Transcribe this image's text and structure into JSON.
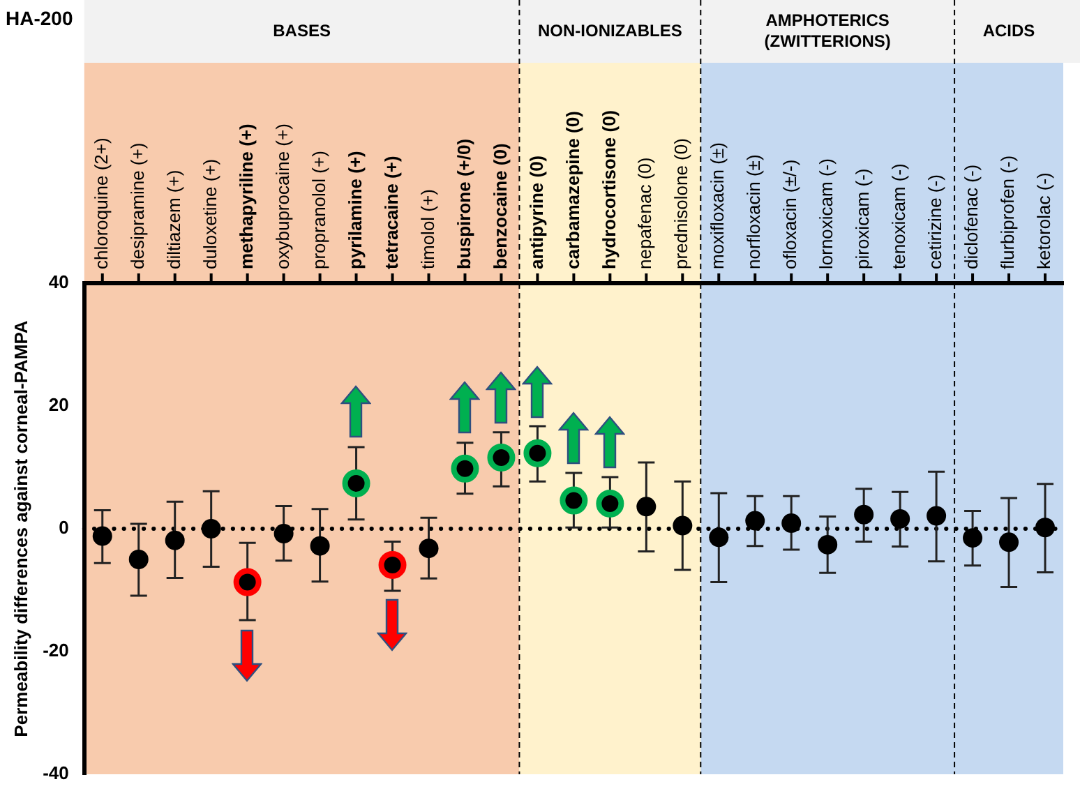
{
  "chart_data": {
    "type": "scatter",
    "title": "HA-200",
    "ylabel": "Permeability differences against corneal-PAMPA",
    "categories": [
      "chloroquine (2+)",
      "desipramine (+)",
      "diltiazem (+)",
      "duloxetine (+)",
      "methapyriline (+)",
      "oxybuprocaine (+)",
      "propranolol (+)",
      "pyrilamine (+)",
      "tetracaine (+)",
      "timolol (+)",
      "buspirone (+/0)",
      "benzocaine (0)",
      "antipyrine (0)",
      "carbamazepine (0)",
      "hydrocortisone (0)",
      "nepafenac (0)",
      "prednisolone (0)",
      "moxifloxacin (±)",
      "norfloxacin (±)",
      "ofloxacin (±/-)",
      "lornoxicam (-)",
      "piroxicam (-)",
      "tenoxicam (-)",
      "cetirizine (-)",
      "diclofenac (-)",
      "flurbiprofen (-)",
      "ketorolac (-)"
    ],
    "series": [
      {
        "color": "#000000",
        "values": [
          -1.2,
          -5.0,
          -1.9,
          0,
          null,
          -0.8,
          -2.8,
          null,
          null,
          -3.2,
          null,
          null,
          null,
          null,
          null,
          3.6,
          0.5,
          -1.4,
          1.3,
          0.9,
          -2.6,
          2.3,
          1.6,
          2.1,
          -1.5,
          -2.2,
          0.2
        ],
        "errors": [
          [
            -5.6,
            3.0
          ],
          [
            -10.9,
            0.8
          ],
          [
            -8.0,
            4.4
          ],
          [
            -6.2,
            6.1
          ],
          null,
          [
            -5.2,
            3.7
          ],
          [
            -8.6,
            3.2
          ],
          null,
          null,
          [
            -8.1,
            1.8
          ],
          null,
          null,
          null,
          null,
          null,
          [
            -3.7,
            10.8
          ],
          [
            -6.7,
            7.7
          ],
          [
            -8.7,
            5.8
          ],
          [
            -2.8,
            5.3
          ],
          [
            -3.4,
            5.3
          ],
          [
            -7.2,
            2.0
          ],
          [
            -2.1,
            6.5
          ],
          [
            -2.9,
            6.0
          ],
          [
            -5.3,
            9.3
          ],
          [
            -6.0,
            2.9
          ],
          [
            -9.5,
            5.0
          ],
          [
            -7.1,
            7.3
          ]
        ]
      },
      {
        "color": "#00b050",
        "values": [
          null,
          null,
          null,
          null,
          null,
          null,
          null,
          7.4,
          null,
          null,
          9.8,
          11.6,
          12.3,
          4.6,
          4.1,
          null,
          null,
          null,
          null,
          null,
          null,
          null,
          null,
          null,
          null,
          null,
          null
        ],
        "errors": [
          null,
          null,
          null,
          null,
          null,
          null,
          null,
          [
            1.5,
            13.3
          ],
          null,
          null,
          [
            5.7,
            14.0
          ],
          [
            6.9,
            15.7
          ],
          [
            7.7,
            16.7
          ],
          [
            0.2,
            9.1
          ],
          [
            0.2,
            8.4
          ],
          null,
          null,
          null,
          null,
          null,
          null,
          null,
          null,
          null,
          null,
          null,
          null
        ]
      },
      {
        "color": "#ff0000",
        "values": [
          null,
          null,
          null,
          null,
          -8.7,
          null,
          null,
          null,
          -5.9,
          null,
          null,
          null,
          null,
          null,
          null,
          null,
          null,
          null,
          null,
          null,
          null,
          null,
          null,
          null,
          null,
          null,
          null
        ],
        "errors": [
          null,
          null,
          null,
          null,
          [
            -14.9,
            -2.3
          ],
          null,
          null,
          null,
          [
            -10.1,
            -2.1
          ],
          null,
          null,
          null,
          null,
          null,
          null,
          null,
          null,
          null,
          null,
          null,
          null,
          null,
          null,
          null,
          null,
          null,
          null
        ]
      }
    ],
    "ylim": [
      -40,
      40
    ],
    "yticks": [
      -40,
      -20,
      0,
      20,
      40
    ],
    "marker": "circle",
    "ref_lines": [
      {
        "axis": "y",
        "value": 0,
        "line_style": "dotted"
      }
    ],
    "bands": [
      {
        "axis": "x",
        "from": "chloroquine (2+)",
        "to": "benzocaine (0)",
        "label": "BASES",
        "color": "#f8cbad"
      },
      {
        "axis": "x",
        "from": "antipyrine (0)",
        "to": "prednisolone (0)",
        "label": "NON-IONIZABLES",
        "color": "#fff2cc"
      },
      {
        "axis": "x",
        "from": "moxifloxacin (±)",
        "to": "cetirizine (-)",
        "label": "AMPHOTERICS (ZWITTERIONS)",
        "color": "#c5d9f1"
      },
      {
        "axis": "x",
        "from": "diclofenac (-)",
        "to": "ketorolac (-)",
        "label": "ACIDS",
        "color": "#c5d9f1"
      }
    ]
  }
}
